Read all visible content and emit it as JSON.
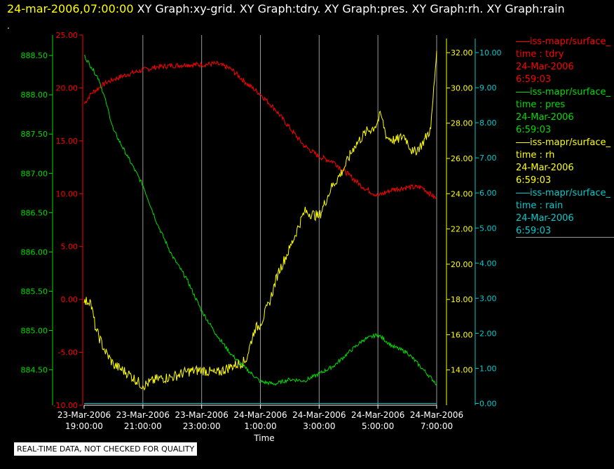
{
  "header": {
    "time": "24-mar-2006,07:00:00",
    "tabs_text": "XY Graph:xy-grid.  XY Graph:tdry.  XY Graph:pres.  XY Graph:rh.  XY Graph:rain",
    "dot": "."
  },
  "footer": {
    "disclaimer": "REAL-TIME DATA, NOT CHECKED FOR QUALITY"
  },
  "legend": [
    {
      "title": "iss-mapr/surface_",
      "line2": "time : tdry",
      "line3": "24-Mar-2006",
      "line4": "6:59:03",
      "color": "#ff0000"
    },
    {
      "title": "iss-mapr/surface_",
      "line2": "time : pres",
      "line3": "24-Mar-2006",
      "line4": "6:59:03",
      "color": "#00dd00"
    },
    {
      "title": "iss-mapr/surface_",
      "line2": "time : rh",
      "line3": "24-Mar-2006",
      "line4": "6:59:03",
      "color": "#ffff00"
    },
    {
      "title": "iss-mapr/surface_",
      "line2": "time : rain",
      "line3": "24-Mar-2006",
      "line4": "6:59:03",
      "color": "#00cccc"
    }
  ],
  "chart_data": {
    "type": "line",
    "xlabel": "Time",
    "x_ticks": [
      {
        "hour": 0,
        "line1": "23-Mar-2006",
        "line2": "19:00:00"
      },
      {
        "hour": 2,
        "line1": "23-Mar-2006",
        "line2": "21:00:00"
      },
      {
        "hour": 4,
        "line1": "23-Mar-2006",
        "line2": "23:00:00"
      },
      {
        "hour": 6,
        "line1": "24-Mar-2006",
        "line2": "1:00:00"
      },
      {
        "hour": 8,
        "line1": "24-Mar-2006",
        "line2": "3:00:00"
      },
      {
        "hour": 10,
        "line1": "24-Mar-2006",
        "line2": "5:00:00"
      },
      {
        "hour": 12,
        "line1": "24-Mar-2006",
        "line2": "7:00:00"
      }
    ],
    "xlim": [
      0,
      12
    ],
    "grid": true,
    "axes": {
      "pres": {
        "color": "#00dd00",
        "ylim": [
          884.05,
          888.76
        ],
        "ticks": [
          "884.50",
          "885.00",
          "885.50",
          "886.00",
          "886.50",
          "887.00",
          "887.50",
          "888.00",
          "888.50"
        ]
      },
      "tdry": {
        "color": "#ff0000",
        "ylim": [
          -10,
          25
        ],
        "ticks": [
          "-10.00",
          "-5.00",
          "0.00",
          "5.00",
          "10.00",
          "15.00",
          "20.00",
          "25.00"
        ]
      },
      "rh": {
        "color": "#ffff00",
        "ylim": [
          12,
          33
        ],
        "ticks": [
          "14.00",
          "16.00",
          "18.00",
          "20.00",
          "22.00",
          "24.00",
          "26.00",
          "28.00",
          "30.00",
          "32.00"
        ]
      },
      "rain": {
        "color": "#00cccc",
        "ylim": [
          -0.05,
          10.5
        ],
        "ticks": [
          "0.00",
          "1.00",
          "2.00",
          "3.00",
          "4.00",
          "5.00",
          "6.00",
          "7.00",
          "8.00",
          "9.00",
          "10.00"
        ]
      }
    },
    "series": [
      {
        "name": "tdry",
        "axis": "tdry",
        "color": "#ff0000",
        "x": [
          0,
          0.25,
          0.5,
          0.75,
          1,
          1.5,
          2,
          2.5,
          3,
          3.5,
          4,
          4.5,
          5,
          5.5,
          6,
          6.5,
          7,
          7.5,
          8,
          8.5,
          9,
          9.5,
          10,
          10.5,
          11,
          11.5,
          12
        ],
        "y": [
          18.5,
          19.5,
          20,
          20.5,
          20.8,
          21.3,
          21.7,
          22,
          22.1,
          22.2,
          22.2,
          22.3,
          21.8,
          20.5,
          19.4,
          18,
          16.2,
          14.5,
          13.5,
          13,
          11.8,
          10.6,
          9.8,
          10.4,
          10.6,
          10.6,
          9.5
        ]
      },
      {
        "name": "pres",
        "axis": "pres",
        "color": "#00dd00",
        "x": [
          0,
          0.25,
          0.5,
          0.75,
          1,
          1.5,
          2,
          2.5,
          3,
          3.5,
          4,
          4.5,
          5,
          5.5,
          6,
          6.5,
          7,
          7.5,
          8,
          8.5,
          9,
          9.5,
          10,
          10.5,
          11,
          11.5,
          12
        ],
        "y": [
          888.5,
          888.35,
          888.2,
          887.9,
          887.55,
          887.2,
          886.85,
          886.35,
          885.95,
          885.65,
          885.25,
          884.95,
          884.7,
          884.52,
          884.35,
          884.32,
          884.38,
          884.36,
          884.45,
          884.55,
          884.72,
          884.88,
          884.95,
          884.8,
          884.72,
          884.52,
          884.32
        ]
      },
      {
        "name": "rh",
        "axis": "rh",
        "color": "#ffff00",
        "x": [
          0,
          0.2,
          0.4,
          0.7,
          1,
          1.5,
          2,
          2.5,
          3,
          3.5,
          4,
          4.5,
          5,
          5.5,
          5.8,
          6,
          6.3,
          6.6,
          7,
          7.5,
          8,
          8.4,
          8.8,
          9.2,
          9.6,
          9.9,
          10.1,
          10.3,
          10.6,
          10.9,
          11.2,
          11.5,
          11.8,
          12
        ],
        "y": [
          17.8,
          18,
          16.3,
          15.1,
          14.3,
          13.8,
          13.1,
          13.5,
          13.6,
          13.9,
          14,
          13.8,
          14.2,
          14.5,
          16.3,
          16.6,
          17.8,
          19.5,
          20.9,
          23,
          22.7,
          24.3,
          25.3,
          26.7,
          27.5,
          27.8,
          28.5,
          27.2,
          27,
          27.3,
          26.3,
          26.8,
          27.7,
          32.1
        ]
      },
      {
        "name": "rain",
        "axis": "rain",
        "color": "#00cccc",
        "x": [
          0,
          12
        ],
        "y": [
          0,
          0
        ]
      }
    ]
  }
}
